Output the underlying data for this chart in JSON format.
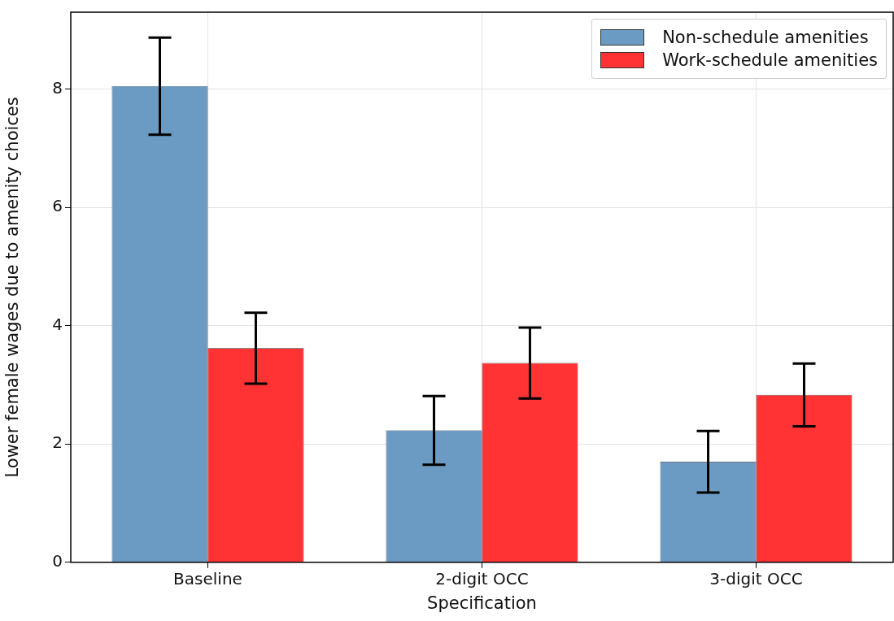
{
  "chart_data": {
    "type": "bar",
    "xlabel": "Specification",
    "ylabel": "Lower female wages due to amenity choices",
    "categories": [
      "Baseline",
      "2-digit OCC",
      "3-digit OCC"
    ],
    "series": [
      {
        "name": "Non-schedule amenities",
        "color": "#6b9bc3",
        "values": [
          8.05,
          2.23,
          1.7
        ],
        "errors": [
          0.82,
          0.58,
          0.52
        ]
      },
      {
        "name": "Work-schedule amenities",
        "color": "#ff3333",
        "values": [
          3.62,
          3.37,
          2.83
        ],
        "errors": [
          0.6,
          0.6,
          0.53
        ]
      }
    ],
    "ylim": [
      0,
      9.3
    ],
    "yticks": [
      0,
      2,
      4,
      6,
      8
    ],
    "grid": true,
    "legend": "top right"
  }
}
